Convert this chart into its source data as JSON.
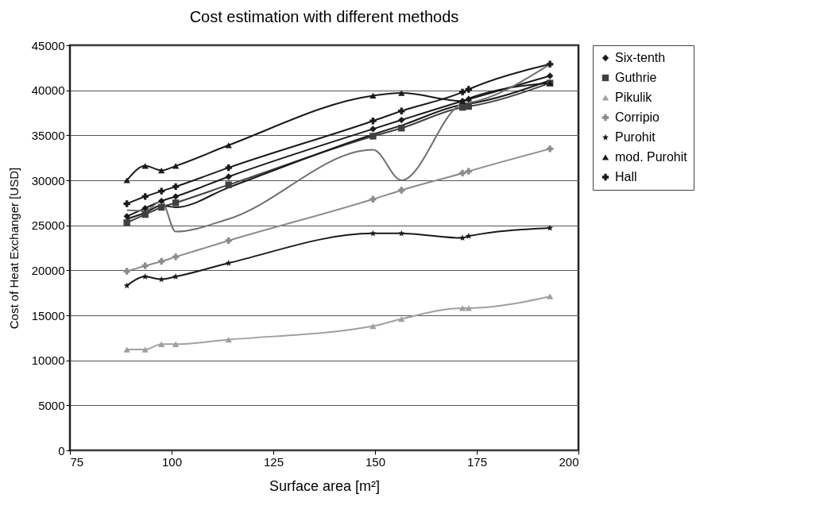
{
  "chart_data": {
    "type": "line",
    "title": "Cost estimation with different methods",
    "xlabel": "Surface area [m²]",
    "ylabel": "Cost of Heat Exchanger [USD]",
    "x": [
      89,
      93.5,
      97.5,
      101,
      114,
      149.5,
      156.5,
      171.5,
      173,
      193
    ],
    "xlim": [
      75,
      200
    ],
    "xticks": [
      75,
      100,
      125,
      150,
      175,
      200
    ],
    "ylim": [
      0,
      45000
    ],
    "yticks": [
      0,
      5000,
      10000,
      15000,
      20000,
      25000,
      30000,
      35000,
      40000,
      45000
    ],
    "grid": "y",
    "legend": "right",
    "series": [
      {
        "name": "Six-tenth",
        "color": "#1a1a1a",
        "marker": "diamond",
        "values": [
          26000,
          26900,
          27700,
          28200,
          30400,
          35700,
          36700,
          38800,
          39000,
          41600
        ]
      },
      {
        "name": "Guthrie",
        "color": "#404040",
        "marker": "square",
        "values": [
          25300,
          26200,
          27000,
          27500,
          29500,
          34900,
          35800,
          38100,
          38200,
          40800
        ]
      },
      {
        "name": "Pikulik",
        "color": "#a0a0a0",
        "marker": "triangle",
        "values": [
          11200,
          11200,
          11800,
          11800,
          12300,
          13800,
          14600,
          15800,
          15800,
          17100
        ]
      },
      {
        "name": "Corripio",
        "color": "#8c8c8c",
        "marker": "cross",
        "values": [
          19900,
          20500,
          21000,
          21500,
          23300,
          27900,
          28900,
          30800,
          31000,
          33500
        ]
      },
      {
        "name": "Purohit",
        "color": "#1a1a1a",
        "marker": "star",
        "values": [
          18300,
          19300,
          19000,
          19300,
          20800,
          24100,
          24100,
          23600,
          23800,
          24700
        ]
      },
      {
        "name": "mod. Purohit",
        "color": "#1a1a1a",
        "marker": "triangle",
        "values": [
          30000,
          31600,
          31100,
          31600,
          33900,
          39400,
          39700,
          38800,
          39100,
          40800
        ]
      },
      {
        "name": "Hall",
        "color": "#1a1a1a",
        "marker": "cross",
        "values": [
          27400,
          28200,
          28800,
          29300,
          31400,
          36600,
          37700,
          39800,
          40100,
          42900
        ]
      },
      {
        "color": "#1a1a1a",
        "marker": "none",
        "values": [
          25700,
          26400,
          27200,
          27000,
          29200,
          35100,
          36100,
          38400,
          38500,
          41100
        ]
      },
      {
        "color": "#707070",
        "marker": "none",
        "values": [
          26700,
          26600,
          27700,
          24300,
          25700,
          33400,
          30000,
          38500,
          38600,
          42900
        ]
      }
    ]
  }
}
